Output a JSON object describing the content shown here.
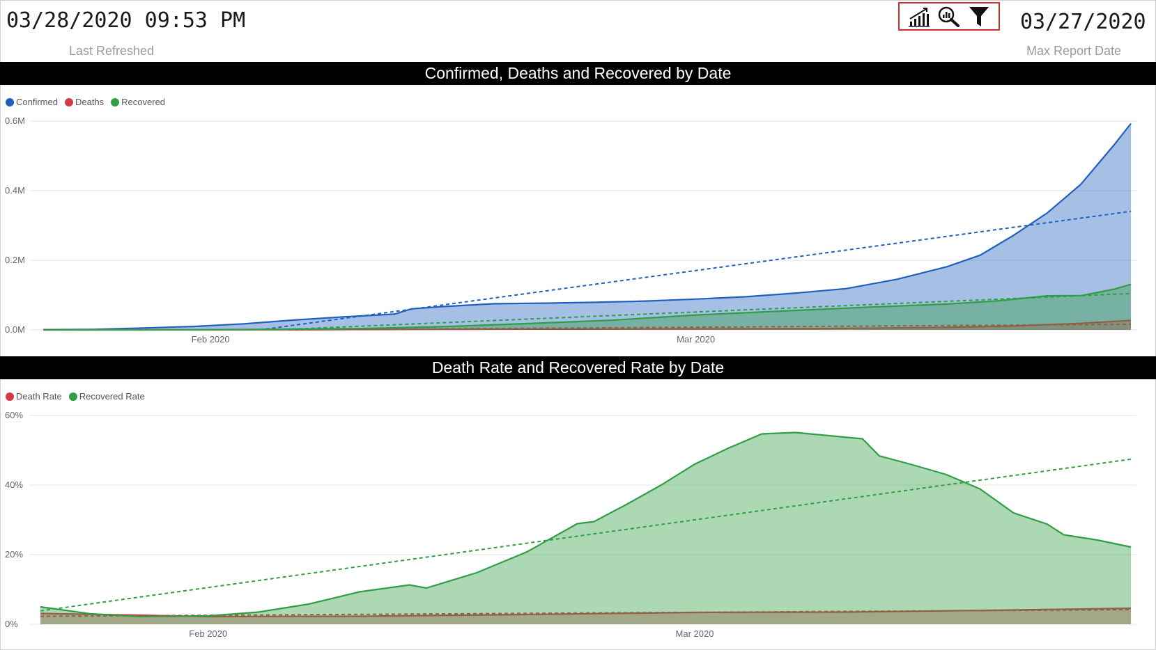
{
  "header": {
    "last_refreshed_value": "03/28/2020 09:53 PM",
    "last_refreshed_label": "Last Refreshed",
    "max_report_date_value": "03/27/2020",
    "max_report_date_label": "Max Report Date",
    "toolbar_icons": [
      "bar-chart-icon",
      "analytics-search-icon",
      "filter-icon"
    ]
  },
  "colors": {
    "confirmed": "#1f5fbf",
    "deaths": "#d13a45",
    "recovered": "#2f9e44"
  },
  "chart_data": [
    {
      "type": "area",
      "title": "Confirmed, Deaths and Recovered by Date",
      "legend_position": "top-left",
      "x_tick_labels": [
        "Feb 2020",
        "Mar 2020"
      ],
      "x_ticks_dates": [
        "2020-02-01",
        "2020-03-01"
      ],
      "x_start": "2020-01-22",
      "x_end": "2020-03-27",
      "y_ticks": [
        "0.0M",
        "0.2M",
        "0.4M",
        "0.6M"
      ],
      "ylim": [
        0,
        600000
      ],
      "grid": true,
      "trend_lines": true,
      "series": [
        {
          "name": "Confirmed",
          "color": "#1f5fbf",
          "x": [
            "2020-01-22",
            "2020-01-25",
            "2020-01-28",
            "2020-01-31",
            "2020-02-03",
            "2020-02-06",
            "2020-02-09",
            "2020-02-12",
            "2020-02-13",
            "2020-02-15",
            "2020-02-18",
            "2020-02-21",
            "2020-02-24",
            "2020-02-27",
            "2020-03-01",
            "2020-03-04",
            "2020-03-07",
            "2020-03-10",
            "2020-03-13",
            "2020-03-16",
            "2020-03-18",
            "2020-03-20",
            "2020-03-22",
            "2020-03-24",
            "2020-03-26",
            "2020-03-27"
          ],
          "values": [
            555,
            1400,
            5500,
            9800,
            17400,
            28300,
            37600,
            45200,
            60400,
            67100,
            75100,
            76800,
            79300,
            82800,
            88400,
            95100,
            105800,
            118600,
            145200,
            181500,
            214900,
            272200,
            336000,
            418000,
            532000,
            593000
          ]
        },
        {
          "name": "Deaths",
          "color": "#d13a45",
          "x": [
            "2020-01-22",
            "2020-02-01",
            "2020-02-10",
            "2020-02-20",
            "2020-03-01",
            "2020-03-10",
            "2020-03-16",
            "2020-03-20",
            "2020-03-24",
            "2020-03-27"
          ],
          "values": [
            17,
            259,
            910,
            2250,
            3000,
            4260,
            7100,
            11300,
            18900,
            27300
          ]
        },
        {
          "name": "Recovered",
          "color": "#2f9e44",
          "x": [
            "2020-01-22",
            "2020-02-01",
            "2020-02-10",
            "2020-02-15",
            "2020-02-20",
            "2020-02-25",
            "2020-03-01",
            "2020-03-06",
            "2020-03-11",
            "2020-03-16",
            "2020-03-19",
            "2020-03-22",
            "2020-03-24",
            "2020-03-26",
            "2020-03-27"
          ],
          "values": [
            28,
            280,
            3700,
            9400,
            18200,
            27900,
            42700,
            53900,
            64600,
            74300,
            83300,
            97900,
            98300,
            117000,
            130900
          ]
        }
      ]
    },
    {
      "type": "area",
      "title": "Death Rate and Recovered Rate by Date",
      "legend_position": "top-left",
      "x_tick_labels": [
        "Feb 2020",
        "Mar 2020"
      ],
      "x_ticks_dates": [
        "2020-02-01",
        "2020-03-01"
      ],
      "x_start": "2020-01-22",
      "x_end": "2020-03-27",
      "y_ticks": [
        "0%",
        "20%",
        "40%",
        "60%"
      ],
      "ylim": [
        0,
        60
      ],
      "grid": true,
      "trend_lines": true,
      "series": [
        {
          "name": "Death Rate",
          "color": "#d13a45",
          "x": [
            "2020-01-22",
            "2020-01-28",
            "2020-02-01",
            "2020-02-10",
            "2020-02-20",
            "2020-03-01",
            "2020-03-10",
            "2020-03-20",
            "2020-03-27"
          ],
          "values": [
            3.1,
            2.6,
            2.2,
            2.3,
            2.8,
            3.4,
            3.5,
            4.1,
            4.6
          ]
        },
        {
          "name": "Recovered Rate",
          "color": "#2f9e44",
          "x": [
            "2020-01-22",
            "2020-01-25",
            "2020-01-28",
            "2020-02-01",
            "2020-02-04",
            "2020-02-07",
            "2020-02-10",
            "2020-02-13",
            "2020-02-14",
            "2020-02-17",
            "2020-02-20",
            "2020-02-23",
            "2020-02-24",
            "2020-02-26",
            "2020-02-28",
            "2020-03-01",
            "2020-03-03",
            "2020-03-05",
            "2020-03-07",
            "2020-03-09",
            "2020-03-11",
            "2020-03-12",
            "2020-03-14",
            "2020-03-16",
            "2020-03-18",
            "2020-03-20",
            "2020-03-22",
            "2020-03-23",
            "2020-03-25",
            "2020-03-27"
          ],
          "values": [
            5.0,
            3.0,
            2.2,
            2.4,
            3.5,
            5.8,
            9.3,
            11.3,
            10.4,
            14.8,
            20.8,
            28.9,
            29.5,
            34.6,
            40.0,
            46.0,
            50.6,
            54.7,
            55.1,
            54.2,
            53.3,
            48.4,
            45.8,
            43.0,
            38.9,
            32.0,
            28.8,
            25.7,
            24.2,
            22.2
          ]
        }
      ]
    }
  ]
}
